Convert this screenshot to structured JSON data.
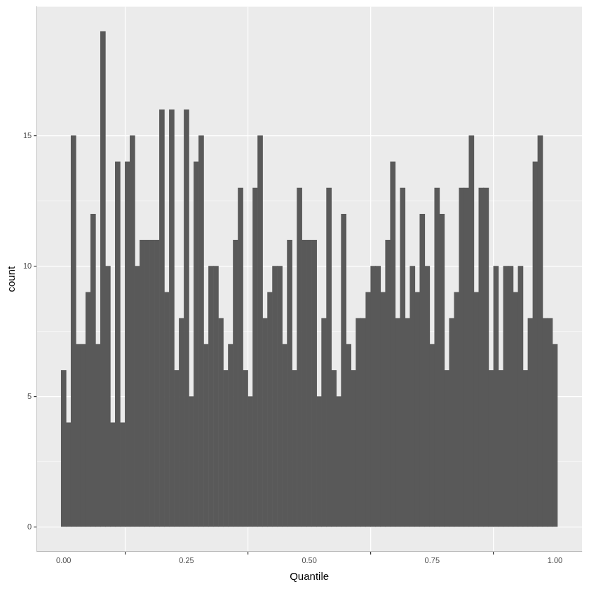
{
  "chart_data": {
    "type": "histogram",
    "x_label": "Quantile",
    "y_label": "count",
    "bins": [
      -0.005,
      0.005,
      0.015,
      0.025,
      0.035,
      0.045,
      0.055,
      0.065,
      0.075,
      0.085,
      0.095,
      0.105,
      0.115,
      0.125,
      0.135,
      0.145,
      0.155,
      0.165,
      0.175,
      0.185,
      0.195,
      0.205,
      0.215,
      0.225,
      0.235,
      0.245,
      0.255,
      0.265,
      0.275,
      0.285,
      0.295,
      0.305,
      0.315,
      0.325,
      0.335,
      0.345,
      0.355,
      0.365,
      0.375,
      0.385,
      0.395,
      0.405,
      0.415,
      0.425,
      0.435,
      0.445,
      0.455,
      0.465,
      0.475,
      0.485,
      0.495,
      0.505,
      0.515,
      0.525,
      0.535,
      0.545,
      0.555,
      0.565,
      0.575,
      0.585,
      0.595,
      0.605,
      0.615,
      0.625,
      0.635,
      0.645,
      0.655,
      0.665,
      0.675,
      0.685,
      0.695,
      0.705,
      0.715,
      0.725,
      0.735,
      0.745,
      0.755,
      0.765,
      0.775,
      0.785,
      0.795,
      0.805,
      0.815,
      0.825,
      0.835,
      0.845,
      0.855,
      0.865,
      0.875,
      0.885,
      0.895,
      0.905,
      0.915,
      0.925,
      0.935,
      0.945,
      0.955,
      0.965,
      0.975,
      0.985,
      0.995,
      1.005
    ],
    "counts": [
      6,
      4,
      15,
      7,
      7,
      9,
      12,
      7,
      19,
      10,
      4,
      14,
      4,
      14,
      15,
      10,
      11,
      11,
      11,
      11,
      16,
      9,
      16,
      6,
      8,
      16,
      5,
      14,
      15,
      7,
      10,
      10,
      8,
      6,
      7,
      11,
      13,
      6,
      5,
      13,
      15,
      8,
      9,
      10,
      10,
      7,
      11,
      6,
      13,
      11,
      11,
      11,
      5,
      8,
      13,
      6,
      5,
      12,
      7,
      6,
      8,
      8,
      9,
      10,
      10,
      9,
      11,
      14,
      8,
      13,
      8,
      10,
      9,
      12,
      10,
      7,
      13,
      12,
      6,
      8,
      9,
      13,
      13,
      15,
      9,
      13,
      13,
      6,
      10,
      6,
      10,
      10,
      9,
      10,
      6,
      8,
      14,
      15,
      8,
      8,
      7
    ],
    "color": "#595959",
    "xlim": [
      -0.055,
      1.055
    ],
    "xticks": [
      {
        "value": 0,
        "label": "0.00"
      },
      {
        "value": 0.25,
        "label": "0.25"
      },
      {
        "value": 0.5,
        "label": "0.50"
      },
      {
        "value": 0.75,
        "label": "0.75"
      },
      {
        "value": 1,
        "label": "1.00"
      }
    ],
    "ylim": [
      -0.95,
      19.95
    ],
    "yticks": [
      0,
      5,
      10,
      15
    ],
    "grid": true
  }
}
